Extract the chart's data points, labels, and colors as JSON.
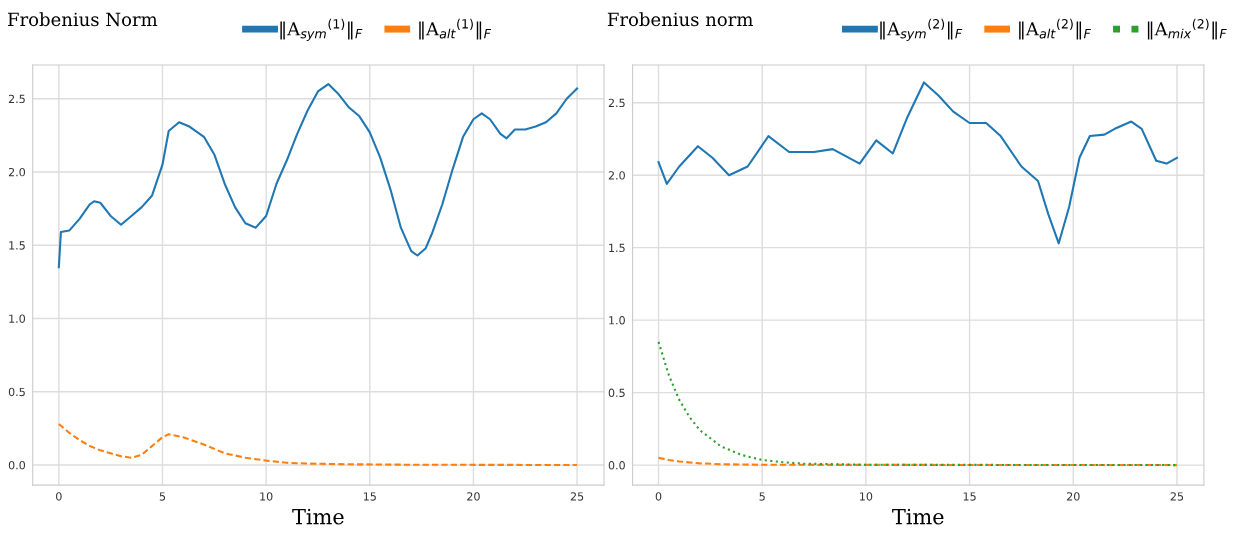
{
  "chart_data": [
    {
      "type": "line",
      "legend_title": "Frobenius Norm",
      "xlabel": "Time",
      "legend": "top",
      "grid": true,
      "xlim": [
        -1.26,
        26.3
      ],
      "ylim": [
        -0.137,
        2.73
      ],
      "xticks": [
        0,
        5,
        10,
        15,
        20,
        25
      ],
      "yticks": [
        {
          "value": 0,
          "label": "0.0"
        },
        {
          "value": 0.5,
          "label": "0.5"
        },
        {
          "value": 1,
          "label": "1.0"
        },
        {
          "value": 1.5,
          "label": "1.5"
        },
        {
          "value": 2,
          "label": "2.0"
        },
        {
          "value": 2.5,
          "label": "2.5"
        }
      ],
      "series": [
        {
          "name": "‖A$_{sym}$$^{(1)}$‖$_{F}$",
          "color": "#1f77b4",
          "line_style": "solid",
          "x": [
            0,
            0.1,
            0.5,
            1,
            1.5,
            1.7,
            2,
            2.5,
            3,
            3.5,
            4,
            4.5,
            5,
            5.3,
            5.8,
            6.3,
            7,
            7.5,
            8,
            8.5,
            9,
            9.5,
            10,
            10.5,
            11,
            11.5,
            12,
            12.5,
            13,
            13.5,
            14,
            14.5,
            15,
            15.5,
            16,
            16.5,
            17,
            17.3,
            17.7,
            18,
            18.5,
            19,
            19.5,
            20,
            20.4,
            20.8,
            21.3,
            21.6,
            22,
            22.5,
            23,
            23.5,
            24,
            24.5,
            25
          ],
          "values": [
            1.35,
            1.59,
            1.6,
            1.68,
            1.78,
            1.8,
            1.79,
            1.7,
            1.64,
            1.7,
            1.76,
            1.84,
            2.05,
            2.28,
            2.34,
            2.31,
            2.24,
            2.12,
            1.92,
            1.76,
            1.65,
            1.62,
            1.7,
            1.92,
            2.08,
            2.26,
            2.42,
            2.55,
            2.6,
            2.53,
            2.44,
            2.38,
            2.27,
            2.1,
            1.88,
            1.62,
            1.46,
            1.43,
            1.48,
            1.58,
            1.78,
            2.02,
            2.24,
            2.36,
            2.4,
            2.36,
            2.26,
            2.23,
            2.29,
            2.29,
            2.31,
            2.34,
            2.4,
            2.5,
            2.57
          ]
        },
        {
          "name": "‖A$_{alt}$$^{(1)}$‖$_{F}$",
          "color": "#ff7f0e",
          "line_style": "dashed",
          "x": [
            0,
            0.5,
            1,
            1.5,
            2,
            2.5,
            3,
            3.5,
            4,
            4.5,
            5,
            5.3,
            6,
            7,
            8,
            9,
            10,
            11,
            12,
            14,
            17,
            25
          ],
          "values": [
            0.28,
            0.22,
            0.17,
            0.13,
            0.1,
            0.08,
            0.06,
            0.05,
            0.07,
            0.13,
            0.19,
            0.21,
            0.19,
            0.14,
            0.08,
            0.05,
            0.03,
            0.015,
            0.01,
            0.005,
            0.002,
            0
          ]
        }
      ]
    },
    {
      "type": "line",
      "legend_title": "Frobenius norm",
      "xlabel": "Time",
      "legend": "top",
      "grid": true,
      "xlim": [
        -1.25,
        26.3
      ],
      "ylim": [
        -0.138,
        2.76
      ],
      "xticks": [
        0,
        5,
        10,
        15,
        20,
        25
      ],
      "yticks": [
        {
          "value": 0,
          "label": "0.0"
        },
        {
          "value": 0.5,
          "label": "0.5"
        },
        {
          "value": 1,
          "label": "1.0"
        },
        {
          "value": 1.5,
          "label": "1.5"
        },
        {
          "value": 2,
          "label": "2.0"
        },
        {
          "value": 2.5,
          "label": "2.5"
        }
      ],
      "series": [
        {
          "name": "‖A$_{sym}$$^{(2)}$‖$_{F}$",
          "color": "#1f77b4",
          "line_style": "solid",
          "x": [
            0,
            0.4,
            1,
            1.9,
            2.6,
            3.4,
            4.3,
            5.3,
            6.3,
            7.5,
            8.4,
            9.7,
            10.5,
            11.3,
            12,
            12.8,
            13.5,
            14.2,
            15,
            15.8,
            16.5,
            17.5,
            18.3,
            18.8,
            19.3,
            19.8,
            20.3,
            20.8,
            21.5,
            22,
            22.8,
            23.3,
            24,
            24.5,
            25
          ],
          "values": [
            2.09,
            1.94,
            2.06,
            2.2,
            2.12,
            2.0,
            2.06,
            2.27,
            2.16,
            2.16,
            2.18,
            2.08,
            2.24,
            2.15,
            2.4,
            2.64,
            2.55,
            2.44,
            2.36,
            2.36,
            2.27,
            2.06,
            1.96,
            1.73,
            1.53,
            1.78,
            2.12,
            2.27,
            2.28,
            2.32,
            2.37,
            2.32,
            2.1,
            2.08,
            2.12
          ]
        },
        {
          "name": "‖A$_{alt}$$^{(2)}$‖$_{F}$",
          "color": "#ff7f0e",
          "line_style": "dashed",
          "x": [
            0,
            0.5,
            1,
            2,
            3,
            5,
            25
          ],
          "values": [
            0.05,
            0.035,
            0.025,
            0.012,
            0.006,
            0.002,
            0
          ]
        },
        {
          "name": "‖A$_{mix}$$^{(2)}$‖$_{F}$",
          "color": "#2ca02c",
          "line_style": "dotted",
          "x": [
            0,
            0.5,
            1,
            1.5,
            2,
            3,
            4,
            5,
            6,
            7,
            10,
            25
          ],
          "values": [
            0.85,
            0.62,
            0.45,
            0.33,
            0.24,
            0.13,
            0.07,
            0.035,
            0.02,
            0.01,
            0.002,
            0
          ]
        }
      ]
    }
  ]
}
